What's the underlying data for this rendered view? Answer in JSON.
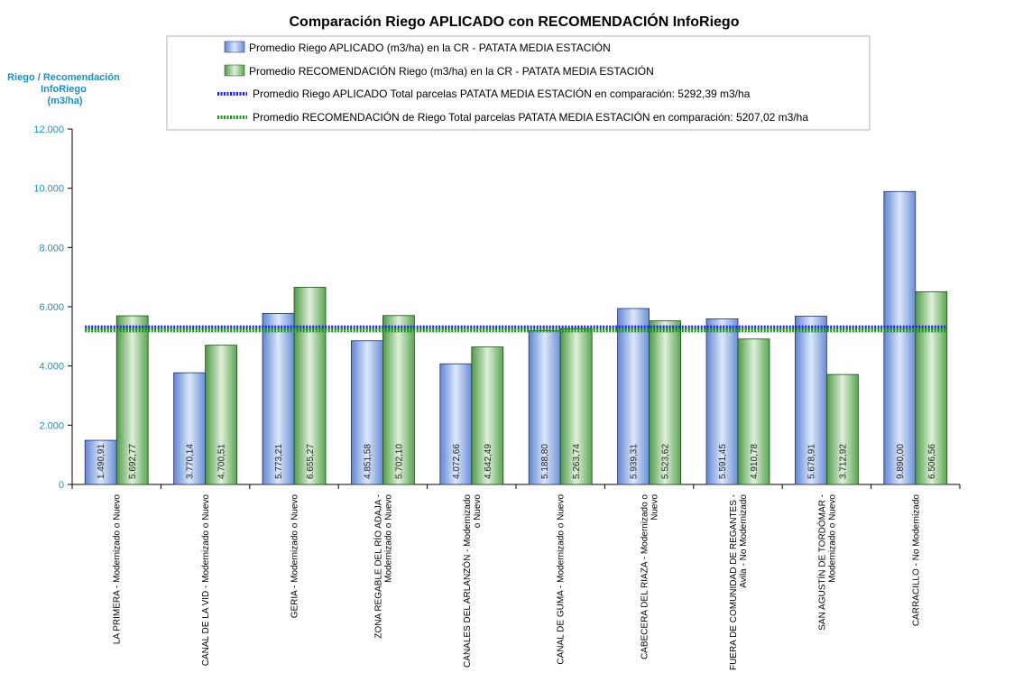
{
  "chart_data": {
    "type": "bar",
    "title": "Comparación Riego APLICADO  con RECOMENDACIÓN InfoRiego",
    "ylabel_lines": [
      "Riego / Recomendación",
      "InfoRiego",
      "(m3/ha)"
    ],
    "xlabel": "",
    "ylim": [
      0,
      12000
    ],
    "yticks": [
      0,
      2000,
      4000,
      6000,
      8000,
      10000,
      12000
    ],
    "ytick_labels": [
      "0",
      "2.000",
      "4.000",
      "6.000",
      "8.000",
      "10.000",
      "12.000"
    ],
    "categories": [
      [
        "LA PRIMERA - Modernizado o Nuevo"
      ],
      [
        "CANAL DE LA VID - Modernizado o Nuevo"
      ],
      [
        "GERIA - Modernizado o Nuevo"
      ],
      [
        "ZONA REGABLE DEL RÍO ADAJA -",
        "Modernizado o Nuevo"
      ],
      [
        "CANALES DEL ARLANZÓN - Modernizado",
        "o Nuevo"
      ],
      [
        "CANAL DE GUMA - Modernizado o Nuevo"
      ],
      [
        "CABECERA DEL RIAZA - Modernizado o",
        "Nuevo"
      ],
      [
        "FUERA DE COMUNIDAD DE REGANTES -",
        "Avila - No Modernizado"
      ],
      [
        "SAN AGUSTÍN DE TORDÓMAR -",
        "Modernizado o Nuevo"
      ],
      [
        "CARRACILLO - No Modernizado"
      ]
    ],
    "series": [
      {
        "name": "Promedio Riego APLICADO (m3/ha) en la CR - PATATA MEDIA ESTACIÓN",
        "color": "#8fb0e6",
        "values": [
          1490.91,
          3770.14,
          5773.21,
          4851.58,
          4072.66,
          5188.8,
          5939.31,
          5591.45,
          5678.91,
          9890.0
        ],
        "labels": [
          "1.490,91",
          "3.770,14",
          "5.773,21",
          "4.851,58",
          "4.072,66",
          "5.188,80",
          "5.939,31",
          "5.591,45",
          "5.678,91",
          "9.890,00"
        ]
      },
      {
        "name": "Promedio RECOMENDACIÓN Riego (m3/ha) en la CR - PATATA MEDIA ESTACIÓN",
        "color": "#82c47a",
        "values": [
          5692.77,
          4700.51,
          6655.27,
          5702.1,
          4642.49,
          5263.74,
          5523.62,
          4910.78,
          3712.92,
          6506.56
        ],
        "labels": [
          "5.692,77",
          "4.700,51",
          "6.655,27",
          "5.702,10",
          "4.642,49",
          "5.263,74",
          "5.523,62",
          "4.910,78",
          "3.712,92",
          "6.506,56"
        ]
      }
    ],
    "reference_lines": [
      {
        "name": "Promedio Riego APLICADO Total parcelas PATATA MEDIA ESTACIÓN en comparación: 5292,39 m3/ha",
        "value": 5292.39,
        "color": "#1a1aff"
      },
      {
        "name": "Promedio RECOMENDACIÓN de Riego Total parcelas PATATA MEDIA ESTACIÓN en comparación: 5207,02 m3/ha",
        "value": 5207.02,
        "color": "#1a9a1a"
      }
    ],
    "legend_position": "top-center",
    "grid": false
  }
}
